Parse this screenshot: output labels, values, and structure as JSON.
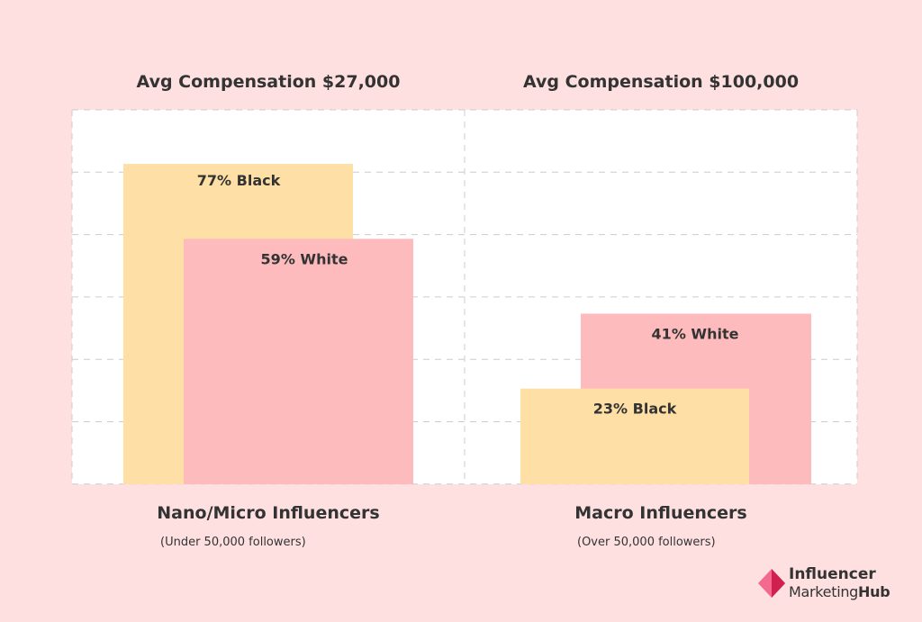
{
  "chart_data": {
    "type": "bar",
    "ylim": [
      0,
      90
    ],
    "groups": [
      {
        "title": "Avg Compensation $27,000",
        "name": "Nano/Micro Influencers",
        "subtitle": "(Under 50,000 followers)",
        "bars": [
          {
            "label": "77% Black",
            "value": 77,
            "color": "#fee0a6"
          },
          {
            "label": "59% White",
            "value": 59,
            "color": "#febbbd"
          }
        ]
      },
      {
        "title": "Avg Compensation $100,000",
        "name": "Macro Influencers",
        "subtitle": "(Over 50,000 followers)",
        "bars": [
          {
            "label": "41% White",
            "value": 41,
            "color": "#febbbd"
          },
          {
            "label": "23% Black",
            "value": 23,
            "color": "#fee0a6"
          }
        ]
      }
    ]
  },
  "logo": {
    "line1": "Influencer",
    "line2a": "Marketing",
    "line2b": "Hub",
    "icon": "diamond-logo-icon",
    "colors": {
      "dark": "#d1204f",
      "light": "#f26a8d"
    }
  }
}
